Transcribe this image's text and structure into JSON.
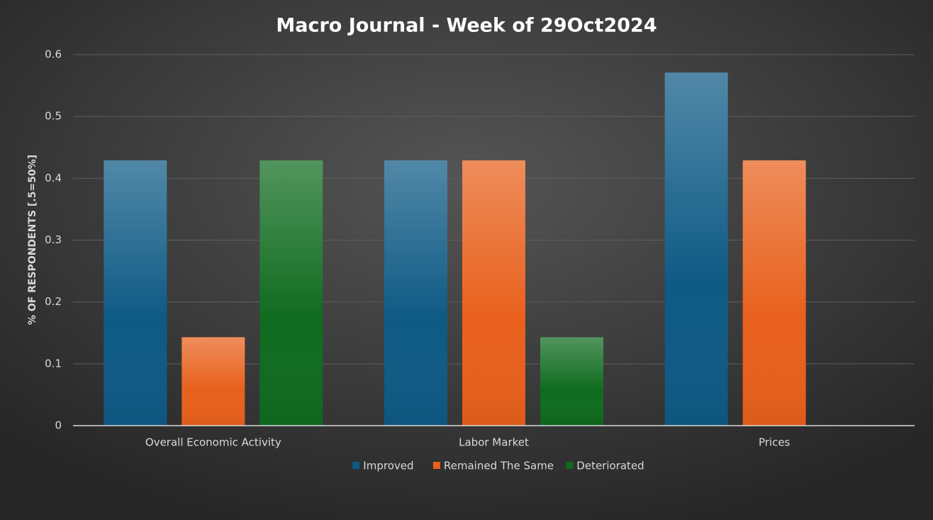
{
  "chart_data": {
    "type": "bar",
    "title": "Macro Journal - Week of 29Oct2024",
    "y_label": "% OF RESPONDENTS [.5=50%]",
    "categories": [
      "Overall Economic Activity",
      "Labor Market",
      "Prices"
    ],
    "series": [
      {
        "name": "Improved",
        "color": "#0e5a85",
        "values": [
          0.429,
          0.429,
          0.571
        ]
      },
      {
        "name": "Remained The Same",
        "color": "#e8601c",
        "values": [
          0.143,
          0.429,
          0.429
        ]
      },
      {
        "name": "Deteriorated",
        "color": "#0f6b1f",
        "values": [
          0.429,
          0.143,
          0
        ]
      }
    ],
    "ylim": [
      0,
      0.6
    ],
    "yticks": [
      0,
      0.1,
      0.2,
      0.3,
      0.4,
      0.5,
      0.6
    ],
    "grid": true,
    "legend": "bottom"
  }
}
